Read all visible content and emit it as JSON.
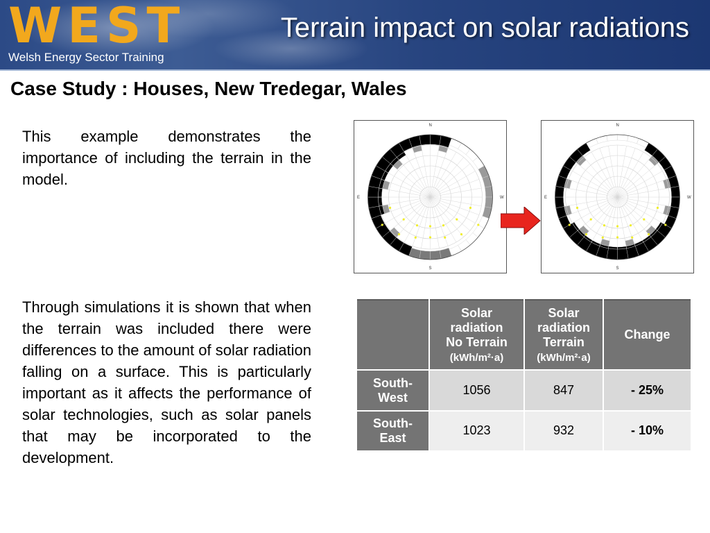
{
  "header": {
    "logo_text": "WEST",
    "logo_subtitle": "Welsh Energy Sector Training",
    "title": "Terrain impact on solar radiations"
  },
  "subtitle": "Case Study : Houses, New Tredegar, Wales",
  "intro_paragraph": "This example demonstrates the importance of including the terrain in the model.",
  "body_paragraph": "Through simulations it is shown that when the terrain was included there were differences to the amount of solar radiation falling on a surface. This is particularly important as it affects the performance of solar technologies, such as solar panels that may be incorporated to the development.",
  "sunpath": {
    "labels": {
      "n": "N",
      "s": "S",
      "e": "E",
      "w": "W"
    },
    "arrow_color": "#e8251e"
  },
  "table": {
    "headers": [
      {
        "line1": "",
        "line2": "",
        "line3": "",
        "unit": ""
      },
      {
        "line1": "Solar",
        "line2": "radiation",
        "line3": "No Terrain",
        "unit": "(kWh/m²·a)"
      },
      {
        "line1": "Solar",
        "line2": "radiation",
        "line3": "Terrain",
        "unit": "(kWh/m²·a)"
      },
      {
        "line1": "Change",
        "line2": "",
        "line3": "",
        "unit": ""
      }
    ],
    "rows": [
      {
        "label_line1": "South-",
        "label_line2": "West",
        "no_terrain": "1056",
        "terrain": "847",
        "change": "- 25%"
      },
      {
        "label_line1": "South-",
        "label_line2": "East",
        "no_terrain": "1023",
        "terrain": "932",
        "change": "- 10%"
      }
    ]
  },
  "colors": {
    "header_bg": "#2c4a86",
    "logo": "#f2a81d",
    "table_header": "#747474",
    "dot": "#f0ee2a"
  }
}
